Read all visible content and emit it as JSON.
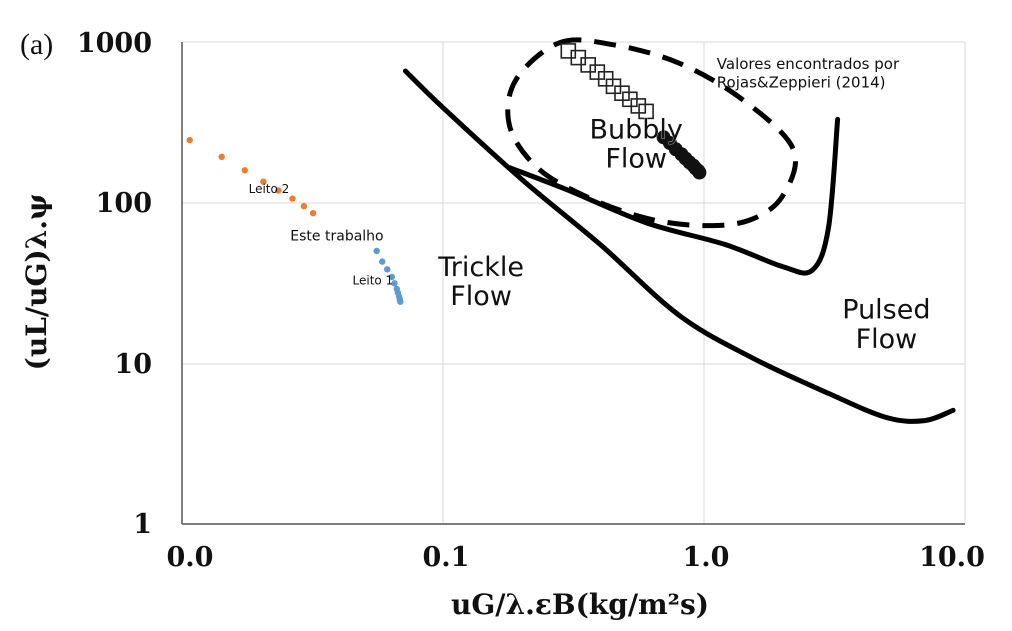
{
  "chart_data": {
    "type": "scatter",
    "panel_label": "(a)",
    "xlabel": "uG/λ.εB(kg/m²s)",
    "ylabel": "(uL/uG)λ.ψ",
    "x_scale": "log",
    "y_scale": "log",
    "xlim": [
      0.01,
      10.0
    ],
    "ylim": [
      1,
      1000
    ],
    "x_ticks": [
      {
        "value": 0.01,
        "label": "0.0"
      },
      {
        "value": 0.1,
        "label": "0.1"
      },
      {
        "value": 1.0,
        "label": "1.0"
      },
      {
        "value": 10.0,
        "label": "10.0"
      }
    ],
    "y_ticks": [
      {
        "value": 1,
        "label": "1"
      },
      {
        "value": 10,
        "label": "10"
      },
      {
        "value": 100,
        "label": "100"
      },
      {
        "value": 1000,
        "label": "1000"
      }
    ],
    "grid": true,
    "series": [
      {
        "name": "Leito 2",
        "color": "#ed7d31",
        "points": [
          [
            0.0107,
            245
          ],
          [
            0.0142,
            193
          ],
          [
            0.0174,
            159
          ],
          [
            0.0205,
            135
          ],
          [
            0.0234,
            119
          ],
          [
            0.0265,
            106
          ],
          [
            0.0293,
            95
          ],
          [
            0.0318,
            86
          ]
        ]
      },
      {
        "name": "Leito 1",
        "color": "#5b9bd5",
        "points": [
          [
            0.0557,
            50
          ],
          [
            0.0585,
            43
          ],
          [
            0.0611,
            38.5
          ],
          [
            0.0637,
            34.5
          ],
          [
            0.0652,
            31.5
          ],
          [
            0.0665,
            29
          ],
          [
            0.0672,
            27.5
          ],
          [
            0.0679,
            26
          ],
          [
            0.0683,
            25
          ],
          [
            0.0686,
            24.2
          ]
        ]
      },
      {
        "name": "Valores encontrados por Rojas&Zeppieri (2014)",
        "marker": "open-square",
        "color": "#222222",
        "points": [
          [
            0.302,
            880
          ],
          [
            0.33,
            800
          ],
          [
            0.36,
            720
          ],
          [
            0.39,
            650
          ],
          [
            0.42,
            590
          ],
          [
            0.45,
            530
          ],
          [
            0.485,
            480
          ],
          [
            0.52,
            440
          ],
          [
            0.56,
            400
          ],
          [
            0.6,
            370
          ]
        ]
      },
      {
        "name": "Bubbly Flow black data",
        "color": "#111111",
        "points": [
          [
            0.7,
            255
          ],
          [
            0.74,
            235
          ],
          [
            0.78,
            215
          ],
          [
            0.82,
            200
          ],
          [
            0.85,
            188
          ],
          [
            0.88,
            178
          ],
          [
            0.91,
            170
          ],
          [
            0.93,
            163
          ],
          [
            0.95,
            158
          ],
          [
            0.96,
            154
          ]
        ]
      }
    ],
    "boundaries": [
      {
        "name": "trickle-pulsed",
        "style": "solid",
        "points": [
          [
            0.0718,
            660
          ],
          [
            0.1,
            390
          ],
          [
            0.2,
            140
          ],
          [
            0.4,
            55
          ],
          [
            0.8,
            20
          ],
          [
            1.5,
            11
          ],
          [
            3.0,
            6.5
          ],
          [
            5.0,
            4.6
          ],
          [
            7.0,
            4.4
          ],
          [
            9.0,
            5.1
          ]
        ]
      },
      {
        "name": "bubbly-pulsed",
        "style": "solid",
        "points": [
          [
            0.18,
            165
          ],
          [
            0.3,
            120
          ],
          [
            0.6,
            75
          ],
          [
            1.2,
            55
          ],
          [
            2.0,
            40
          ],
          [
            2.6,
            38
          ],
          [
            3.0,
            70
          ],
          [
            3.25,
            330
          ]
        ]
      },
      {
        "name": "bubbly-region",
        "style": "dashed",
        "closed": true,
        "points": [
          [
            0.28,
            990
          ],
          [
            0.45,
            960
          ],
          [
            0.8,
            740
          ],
          [
            1.4,
            440
          ],
          [
            2.2,
            215
          ],
          [
            2.0,
            110
          ],
          [
            1.5,
            78
          ],
          [
            1.0,
            72
          ],
          [
            0.6,
            80
          ],
          [
            0.35,
            110
          ],
          [
            0.23,
            165
          ],
          [
            0.18,
            300
          ],
          [
            0.19,
            580
          ]
        ]
      }
    ],
    "annotations": [
      {
        "text": "Bubbly",
        "x": 0.55,
        "y": 250
      },
      {
        "text": "Flow",
        "x": 0.55,
        "y": 165
      },
      {
        "text": "Trickle",
        "x": 0.14,
        "y": 35
      },
      {
        "text": "Flow",
        "x": 0.14,
        "y": 23
      },
      {
        "text": "Pulsed",
        "x": 5.0,
        "y": 19
      },
      {
        "text": "Flow",
        "x": 5.0,
        "y": 12.5
      },
      {
        "text": "Valores encontrados por",
        "x": 1.12,
        "y": 680
      },
      {
        "text": "Rojas&Zeppieri (2014)",
        "x": 1.12,
        "y": 520
      },
      {
        "text": "Leito 2",
        "x": 0.018,
        "y": 115
      },
      {
        "text": "Este trabalho",
        "x": 0.026,
        "y": 58
      },
      {
        "text": "Leito 1",
        "x": 0.045,
        "y": 31
      }
    ]
  }
}
